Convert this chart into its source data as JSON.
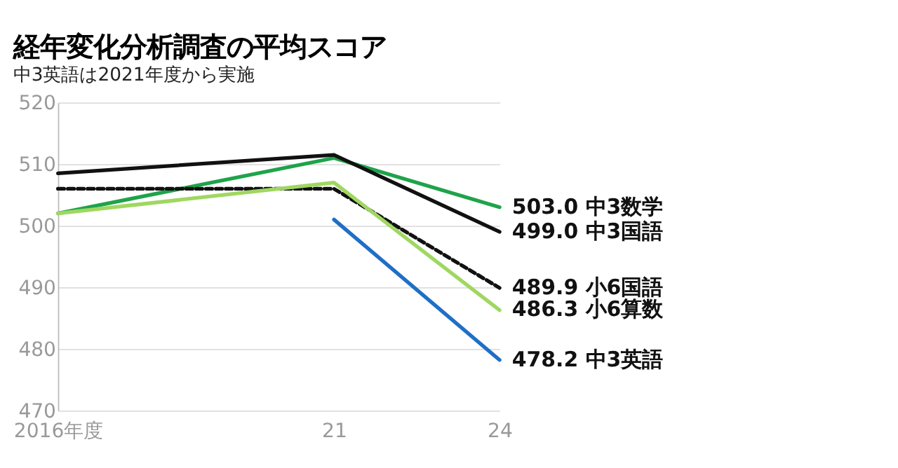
{
  "chart_data": {
    "type": "line",
    "title": "経年変化分析調査の平均スコア",
    "subtitle": "中3英語は2021年度から実施",
    "x": [
      2016,
      2021,
      2024
    ],
    "xlim": [
      2016,
      2024
    ],
    "xticks": [
      {
        "value": 2016,
        "label": "2016年度"
      },
      {
        "value": 2021,
        "label": "21"
      },
      {
        "value": 2024,
        "label": "24"
      }
    ],
    "ylim": [
      470,
      520
    ],
    "yticks": [
      470,
      480,
      490,
      500,
      510,
      520
    ],
    "grid": "y",
    "legend": false,
    "series": [
      {
        "name": "中3数学",
        "color": "#1fa34a",
        "values": [
          502,
          511,
          503.0
        ],
        "value_labels": [
          null,
          null,
          "503.0"
        ]
      },
      {
        "name": "中3国語",
        "color": "#111111",
        "values": [
          508.5,
          511.5,
          499.0
        ],
        "value_labels": [
          null,
          null,
          "499.0"
        ]
      },
      {
        "name": "小6国語",
        "color": "#111111",
        "line_style": "dashed",
        "values": [
          506,
          506,
          489.9
        ],
        "value_labels": [
          null,
          null,
          "489.9"
        ]
      },
      {
        "name": "小6算数",
        "color": "#9fd760",
        "values": [
          502,
          507,
          486.3
        ],
        "value_labels": [
          null,
          null,
          "486.3"
        ]
      },
      {
        "name": "中3英語",
        "color": "#1f6fc6",
        "values": [
          null,
          501,
          478.2
        ],
        "value_labels": [
          null,
          null,
          "478.2"
        ]
      }
    ]
  }
}
